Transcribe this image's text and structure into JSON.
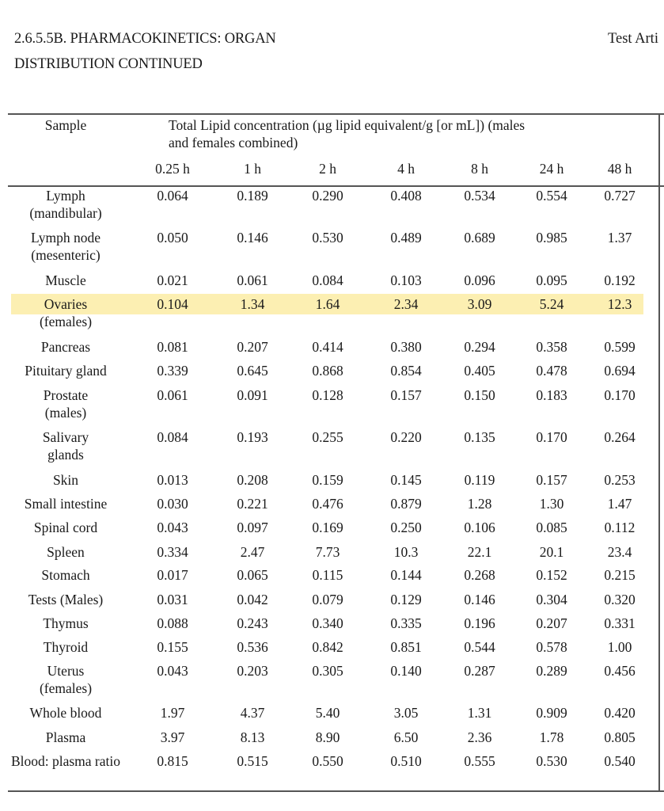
{
  "header": {
    "title_line1": "2.6.5.5B. PHARMACOKINETICS: ORGAN",
    "title_line2": "DISTRIBUTION CONTINUED",
    "right_text": "Test Arti"
  },
  "table": {
    "sample_header": "Sample",
    "group_header_line1": "Total Lipid concentration (µg lipid equivalent/g [or mL]) (males",
    "group_header_line2": "and females combined)",
    "time_points": [
      "0.25 h",
      "1 h",
      "2 h",
      "4 h",
      "8 h",
      "24 h",
      "48 h"
    ],
    "highlight_color": "#fcefb2",
    "rows": [
      {
        "sample": [
          "Lymph",
          "(mandibular)"
        ],
        "values": [
          "0.064",
          "0.189",
          "0.290",
          "0.408",
          "0.534",
          "0.554",
          "0.727"
        ]
      },
      {
        "sample": [
          "Lymph node",
          "(mesenteric)"
        ],
        "values": [
          "0.050",
          "0.146",
          "0.530",
          "0.489",
          "0.689",
          "0.985",
          "1.37"
        ]
      },
      {
        "sample": [
          "Muscle"
        ],
        "values": [
          "0.021",
          "0.061",
          "0.084",
          "0.103",
          "0.096",
          "0.095",
          "0.192"
        ]
      },
      {
        "sample": [
          "Ovaries",
          "(females)"
        ],
        "values": [
          "0.104",
          "1.34",
          "1.64",
          "2.34",
          "3.09",
          "5.24",
          "12.3"
        ],
        "highlighted": true
      },
      {
        "sample": [
          "Pancreas"
        ],
        "values": [
          "0.081",
          "0.207",
          "0.414",
          "0.380",
          "0.294",
          "0.358",
          "0.599"
        ]
      },
      {
        "sample": [
          "Pituitary gland"
        ],
        "values": [
          "0.339",
          "0.645",
          "0.868",
          "0.854",
          "0.405",
          "0.478",
          "0.694"
        ]
      },
      {
        "sample": [
          "Prostate",
          "(males)"
        ],
        "values": [
          "0.061",
          "0.091",
          "0.128",
          "0.157",
          "0.150",
          "0.183",
          "0.170"
        ]
      },
      {
        "sample": [
          "Salivary",
          "glands"
        ],
        "values": [
          "0.084",
          "0.193",
          "0.255",
          "0.220",
          "0.135",
          "0.170",
          "0.264"
        ]
      },
      {
        "sample": [
          "Skin"
        ],
        "values": [
          "0.013",
          "0.208",
          "0.159",
          "0.145",
          "0.119",
          "0.157",
          "0.253"
        ]
      },
      {
        "sample": [
          "Small intestine"
        ],
        "values": [
          "0.030",
          "0.221",
          "0.476",
          "0.879",
          "1.28",
          "1.30",
          "1.47"
        ]
      },
      {
        "sample": [
          "Spinal cord"
        ],
        "values": [
          "0.043",
          "0.097",
          "0.169",
          "0.250",
          "0.106",
          "0.085",
          "0.112"
        ]
      },
      {
        "sample": [
          "Spleen"
        ],
        "values": [
          "0.334",
          "2.47",
          "7.73",
          "10.3",
          "22.1",
          "20.1",
          "23.4"
        ]
      },
      {
        "sample": [
          "Stomach"
        ],
        "values": [
          "0.017",
          "0.065",
          "0.115",
          "0.144",
          "0.268",
          "0.152",
          "0.215"
        ]
      },
      {
        "sample": [
          "Tests (Males)"
        ],
        "values": [
          "0.031",
          "0.042",
          "0.079",
          "0.129",
          "0.146",
          "0.304",
          "0.320"
        ]
      },
      {
        "sample": [
          "Thymus"
        ],
        "values": [
          "0.088",
          "0.243",
          "0.340",
          "0.335",
          "0.196",
          "0.207",
          "0.331"
        ]
      },
      {
        "sample": [
          "Thyroid"
        ],
        "values": [
          "0.155",
          "0.536",
          "0.842",
          "0.851",
          "0.544",
          "0.578",
          "1.00"
        ]
      },
      {
        "sample": [
          "Uterus",
          "(females)"
        ],
        "values": [
          "0.043",
          "0.203",
          "0.305",
          "0.140",
          "0.287",
          "0.289",
          "0.456"
        ]
      },
      {
        "sample": [
          "Whole blood"
        ],
        "values": [
          "1.97",
          "4.37",
          "5.40",
          "3.05",
          "1.31",
          "0.909",
          "0.420"
        ]
      },
      {
        "sample": [
          "Plasma"
        ],
        "values": [
          "3.97",
          "8.13",
          "8.90",
          "6.50",
          "2.36",
          "1.78",
          "0.805"
        ]
      },
      {
        "sample": [
          "Blood: plasma ratio"
        ],
        "values": [
          "0.815",
          "0.515",
          "0.550",
          "0.510",
          "0.555",
          "0.530",
          "0.540"
        ]
      }
    ]
  }
}
